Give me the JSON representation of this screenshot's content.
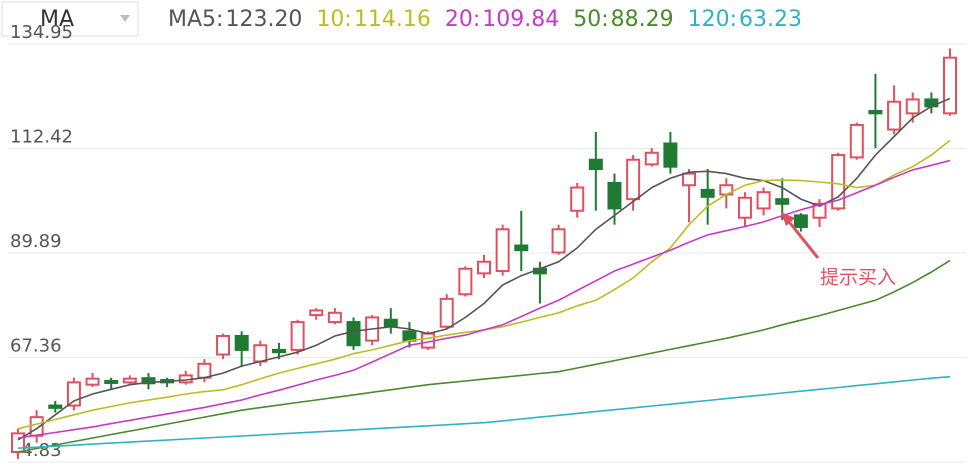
{
  "chart_data": {
    "type": "candlestick",
    "indicator": "MA",
    "annotation": "提示买入",
    "up_color": "#e0505e",
    "down_color": "#1f7a34",
    "grid": true,
    "ylim": [
      44.83,
      134.95
    ],
    "yticks": [
      {
        "value": 44.83,
        "label": "44.83"
      },
      {
        "value": 67.36,
        "label": "67.36"
      },
      {
        "value": 89.89,
        "label": "89.89"
      },
      {
        "value": 112.42,
        "label": "112.42"
      },
      {
        "value": 134.95,
        "label": "134.95"
      }
    ],
    "open": [
      47,
      50.5,
      57,
      57,
      61.5,
      62.3,
      62,
      62.9,
      62.5,
      62,
      63,
      68,
      72,
      66.5,
      69,
      69,
      76.5,
      75,
      75,
      71,
      75.5,
      73,
      69.5,
      74,
      81,
      85.5,
      86,
      91.5,
      86.5,
      90,
      99,
      110,
      105,
      101.5,
      109,
      113.5,
      104.5,
      103.5,
      102.5,
      97.5,
      99.5,
      101.5,
      98,
      97.5,
      99.5,
      110.5,
      120.5,
      116.5,
      120,
      123,
      120
    ],
    "high": [
      52,
      56,
      58,
      63,
      64,
      63,
      63.5,
      64,
      63,
      64.5,
      67,
      72.5,
      73,
      71,
      70.5,
      75.5,
      78,
      78,
      76,
      76.5,
      78,
      75,
      73,
      81,
      87,
      89.5,
      96,
      99,
      88,
      96,
      105,
      116,
      107,
      111,
      112.5,
      116,
      108,
      108,
      106,
      103,
      104,
      106,
      98.5,
      101.5,
      111.5,
      118,
      128.5,
      126,
      124.5,
      124.5,
      134
    ],
    "low": [
      45.5,
      49,
      55.5,
      56,
      61,
      60.5,
      61.5,
      60.5,
      61,
      61.5,
      62,
      67,
      65.5,
      65.5,
      67,
      68,
      75.5,
      74.5,
      69,
      70,
      72.5,
      69.5,
      69,
      73.5,
      80.5,
      84.5,
      85,
      86,
      79,
      89.5,
      97.5,
      99,
      96,
      99,
      108.5,
      107,
      96.5,
      96,
      99.5,
      95.5,
      98,
      97,
      94.5,
      95.5,
      99,
      110,
      112.5,
      115.5,
      118,
      120,
      119.5
    ],
    "close": [
      51,
      54.5,
      56.5,
      62,
      62.8,
      62,
      62.8,
      61.8,
      62,
      63.5,
      66,
      72,
      69,
      70,
      68.5,
      75,
      77.5,
      77,
      70,
      76,
      74,
      71,
      72.5,
      80,
      86.5,
      88,
      95,
      90.5,
      85.5,
      95,
      104,
      108,
      99.5,
      110,
      111.5,
      108.5,
      107,
      102,
      104.5,
      101.8,
      103,
      100.5,
      95.5,
      100.5,
      111,
      117.5,
      120,
      122.5,
      123,
      121.5,
      132
    ],
    "series": [
      {
        "name": "MA5:",
        "color": "#555555",
        "current": {
          "value": 123.2,
          "label": "123.20"
        },
        "values": [
          49.6,
          52,
          55,
          58,
          59.5,
          60.5,
          61.5,
          62,
          62.2,
          62.5,
          63,
          64,
          65.5,
          66.5,
          67.5,
          68.5,
          70,
          72,
          73,
          73.5,
          74,
          73.5,
          72.5,
          73.5,
          76,
          79,
          83,
          85,
          86.5,
          88,
          91,
          95,
          98,
          101,
          104,
          106,
          107.3,
          107.5,
          107,
          106,
          105.5,
          104,
          101.5,
          100,
          102,
          106,
          111,
          115,
          119,
          121.5,
          123.2
        ]
      },
      {
        "name": "10:",
        "color": "#bdbd22",
        "current": 114.16,
        "values": [
          52,
          53,
          54,
          55,
          56,
          56.8,
          57.6,
          58.2,
          58.8,
          59.5,
          60,
          60.4,
          61.5,
          62.8,
          64,
          65,
          66,
          67,
          68.2,
          69,
          70,
          71,
          71.5,
          72.2,
          72.8,
          73.3,
          74,
          75,
          76,
          77,
          78.5,
          79.7,
          82,
          84.5,
          88,
          91,
          96,
          100,
          102.5,
          104.5,
          105.5,
          105.6,
          105.5,
          105.2,
          104.8,
          104,
          104.5,
          106.7,
          108.5,
          111,
          114.16
        ]
      },
      {
        "name": "20:",
        "color": "#c33cc3",
        "current": 109.84,
        "values": [
          50,
          50.6,
          51.2,
          51.8,
          52.4,
          53.1,
          53.8,
          54.5,
          55.2,
          55.9,
          56.6,
          57.4,
          58.2,
          59.3,
          60.3,
          61.4,
          62.5,
          63.5,
          64.6,
          66.4,
          68.2,
          70,
          70.7,
          71.5,
          72.2,
          73.3,
          74.4,
          76.2,
          78,
          79.7,
          81.8,
          83.9,
          86,
          87.5,
          89,
          90.5,
          92.2,
          93.8,
          94.7,
          95.6,
          96.6,
          97.9,
          99.2,
          100.3,
          101.3,
          102.9,
          104.5,
          106.2,
          107.8,
          108.8,
          109.84
        ]
      },
      {
        "name": "50:",
        "color": "#4a8a2e",
        "current": 88.29,
        "values": [
          47,
          47.75,
          48.5,
          49.25,
          50,
          50.75,
          51.5,
          52.25,
          53,
          53.75,
          54.5,
          55.25,
          56,
          56.55,
          57.1,
          57.65,
          58.2,
          58.75,
          59.3,
          59.85,
          60.4,
          60.95,
          61.5,
          61.9,
          62.3,
          62.7,
          63.1,
          63.5,
          63.9,
          64.3,
          65.1,
          65.9,
          66.7,
          67.5,
          68.3,
          69.1,
          69.9,
          70.7,
          71.5,
          72.4,
          73.3,
          74.4,
          75.4,
          76.4,
          77.5,
          78.6,
          79.7,
          81.5,
          83.5,
          85.8,
          88.29
        ]
      },
      {
        "name": "120:",
        "color": "#2fb3c4",
        "current": 63.23,
        "values": [
          47.8,
          48.02,
          48.24,
          48.46,
          48.68,
          48.9,
          49.12,
          49.34,
          49.56,
          49.78,
          50,
          50.22,
          50.44,
          50.66,
          50.88,
          51.1,
          51.32,
          51.54,
          51.76,
          51.98,
          52.2,
          52.42,
          52.64,
          52.86,
          53.08,
          53.3,
          53.7,
          54.1,
          54.5,
          54.9,
          55.3,
          55.7,
          56.1,
          56.5,
          56.9,
          57.3,
          57.7,
          58.1,
          58.5,
          58.9,
          59.3,
          59.7,
          60.1,
          60.5,
          60.9,
          61.3,
          61.7,
          62.1,
          62.5,
          62.9,
          63.23
        ]
      }
    ]
  }
}
